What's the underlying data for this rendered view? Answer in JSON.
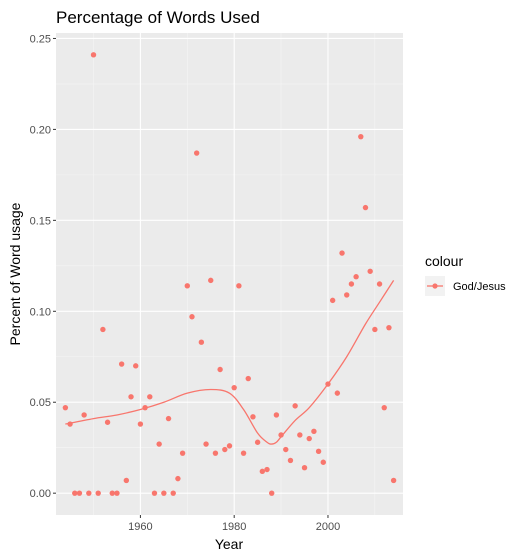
{
  "chart_data": {
    "type": "scatter",
    "title": "Percentage of Words Used",
    "xlabel": "Year",
    "ylabel": "Percent of Word usage",
    "xlim": [
      1942,
      2016
    ],
    "ylim": [
      -0.012,
      0.253
    ],
    "x_ticks": [
      1960,
      1980,
      2000
    ],
    "y_ticks": [
      0.0,
      0.05,
      0.1,
      0.15,
      0.2,
      0.25
    ],
    "y_tick_labels": [
      "0.00",
      "0.05",
      "0.10",
      "0.15",
      "0.20",
      "0.25"
    ],
    "grid": true,
    "legend": {
      "title": "colour",
      "position": "right",
      "entries": [
        "God/Jesus"
      ]
    },
    "colors": {
      "series": "#f8766d",
      "panel": "#ebebeb",
      "grid_major": "#ffffff",
      "grid_minor": "#f5f5f5"
    },
    "series": [
      {
        "name": "God/Jesus",
        "points": [
          [
            1944,
            0.047
          ],
          [
            1945,
            0.038
          ],
          [
            1946,
            0.0
          ],
          [
            1947,
            0.0
          ],
          [
            1948,
            0.043
          ],
          [
            1949,
            0.0
          ],
          [
            1950,
            0.241
          ],
          [
            1951,
            0.0
          ],
          [
            1952,
            0.09
          ],
          [
            1953,
            0.039
          ],
          [
            1954,
            0.0
          ],
          [
            1955,
            0.0
          ],
          [
            1956,
            0.071
          ],
          [
            1957,
            0.007
          ],
          [
            1958,
            0.053
          ],
          [
            1959,
            0.07
          ],
          [
            1960,
            0.038
          ],
          [
            1961,
            0.047
          ],
          [
            1962,
            0.053
          ],
          [
            1963,
            0.0
          ],
          [
            1964,
            0.027
          ],
          [
            1965,
            0.0
          ],
          [
            1966,
            0.041
          ],
          [
            1967,
            0.0
          ],
          [
            1968,
            0.008
          ],
          [
            1969,
            0.022
          ],
          [
            1970,
            0.114
          ],
          [
            1971,
            0.097
          ],
          [
            1972,
            0.187
          ],
          [
            1973,
            0.083
          ],
          [
            1974,
            0.027
          ],
          [
            1975,
            0.117
          ],
          [
            1976,
            0.022
          ],
          [
            1977,
            0.068
          ],
          [
            1978,
            0.024
          ],
          [
            1979,
            0.026
          ],
          [
            1980,
            0.058
          ],
          [
            1981,
            0.114
          ],
          [
            1982,
            0.022
          ],
          [
            1983,
            0.063
          ],
          [
            1984,
            0.042
          ],
          [
            1985,
            0.028
          ],
          [
            1986,
            0.012
          ],
          [
            1987,
            0.013
          ],
          [
            1988,
            0.0
          ],
          [
            1989,
            0.043
          ],
          [
            1990,
            0.032
          ],
          [
            1991,
            0.024
          ],
          [
            1992,
            0.018
          ],
          [
            1993,
            0.048
          ],
          [
            1994,
            0.032
          ],
          [
            1995,
            0.014
          ],
          [
            1996,
            0.03
          ],
          [
            1997,
            0.034
          ],
          [
            1998,
            0.023
          ],
          [
            1999,
            0.017
          ],
          [
            2000,
            0.06
          ],
          [
            2001,
            0.106
          ],
          [
            2002,
            0.055
          ],
          [
            2003,
            0.132
          ],
          [
            2004,
            0.109
          ],
          [
            2005,
            0.115
          ],
          [
            2006,
            0.119
          ],
          [
            2007,
            0.196
          ],
          [
            2008,
            0.157
          ],
          [
            2009,
            0.122
          ],
          [
            2010,
            0.09
          ],
          [
            2011,
            0.115
          ],
          [
            2012,
            0.047
          ],
          [
            2013,
            0.091
          ],
          [
            2014,
            0.007
          ]
        ],
        "smooth": [
          [
            1944,
            0.038
          ],
          [
            1950,
            0.041
          ],
          [
            1955,
            0.043
          ],
          [
            1960,
            0.046
          ],
          [
            1965,
            0.05
          ],
          [
            1970,
            0.055
          ],
          [
            1975,
            0.057
          ],
          [
            1979,
            0.055
          ],
          [
            1982,
            0.046
          ],
          [
            1985,
            0.033
          ],
          [
            1987,
            0.028
          ],
          [
            1988,
            0.027
          ],
          [
            1989,
            0.028
          ],
          [
            1990,
            0.031
          ],
          [
            1993,
            0.04
          ],
          [
            1996,
            0.047
          ],
          [
            2000,
            0.06
          ],
          [
            2004,
            0.075
          ],
          [
            2008,
            0.093
          ],
          [
            2011,
            0.105
          ],
          [
            2014,
            0.117
          ]
        ]
      }
    ]
  }
}
